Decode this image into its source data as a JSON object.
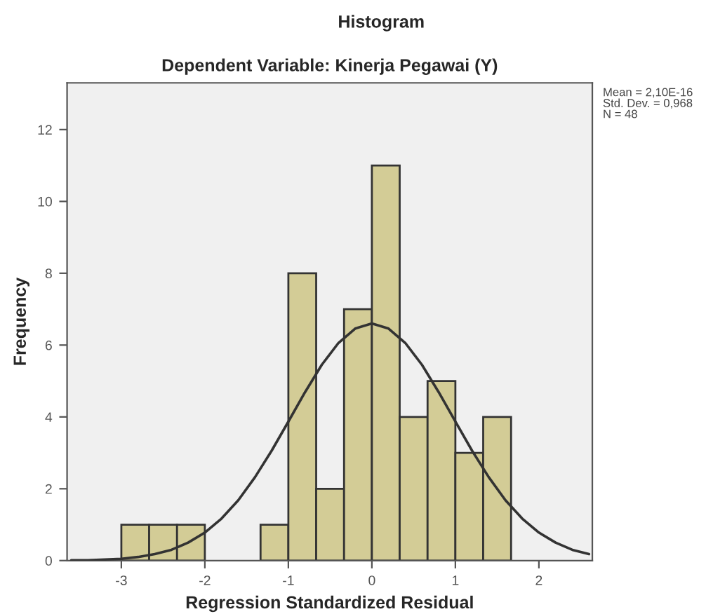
{
  "chart_data": {
    "type": "histogram",
    "title": "Histogram",
    "subtitle": "Dependent Variable: Kinerja Pegawai (Y)",
    "xlabel": "Regression Standardized Residual",
    "ylabel": "Frequency",
    "bins": [
      -3,
      -2.667,
      -2.333,
      -2,
      -1.667,
      -1.333,
      -1,
      -0.667,
      -0.333,
      0,
      0.333,
      0.667,
      1,
      1.333,
      1.667
    ],
    "values": [
      1,
      1,
      1,
      0,
      0,
      1,
      8,
      2,
      7,
      11,
      4,
      5,
      3,
      4
    ],
    "color": "#d3cc96",
    "series": [
      {
        "type": "line",
        "color": "#333333",
        "x": [
          -3.6,
          -3.4,
          -3.2,
          -3.0,
          -2.8,
          -2.6,
          -2.4,
          -2.2,
          -2.0,
          -1.8,
          -1.6,
          -1.4,
          -1.2,
          -1.0,
          -0.8,
          -0.6,
          -0.4,
          -0.2,
          0,
          0.2,
          0.4,
          0.6,
          0.8,
          1.0,
          1.2,
          1.4,
          1.6,
          1.8,
          2.0,
          2.2,
          2.4,
          2.6
        ],
        "values": [
          0.01,
          0.01,
          0.03,
          0.05,
          0.1,
          0.18,
          0.3,
          0.5,
          0.78,
          1.17,
          1.68,
          2.32,
          3.06,
          3.87,
          4.69,
          5.45,
          6.06,
          6.46,
          6.6,
          6.46,
          6.06,
          5.45,
          4.69,
          3.87,
          3.06,
          2.32,
          1.68,
          1.17,
          0.78,
          0.5,
          0.3,
          0.18
        ]
      }
    ],
    "xlim": [
      -3.65,
      2.64
    ],
    "ylim": [
      0,
      13.3
    ],
    "xticks": [
      -3,
      -2,
      -1,
      0,
      1,
      2
    ],
    "yticks": [
      0,
      2,
      4,
      6,
      8,
      10,
      12
    ],
    "annotations": [
      "Mean = 2,10E-16",
      "Std. Dev. = 0,968",
      "N = 48"
    ],
    "grid": false,
    "legend": false
  }
}
